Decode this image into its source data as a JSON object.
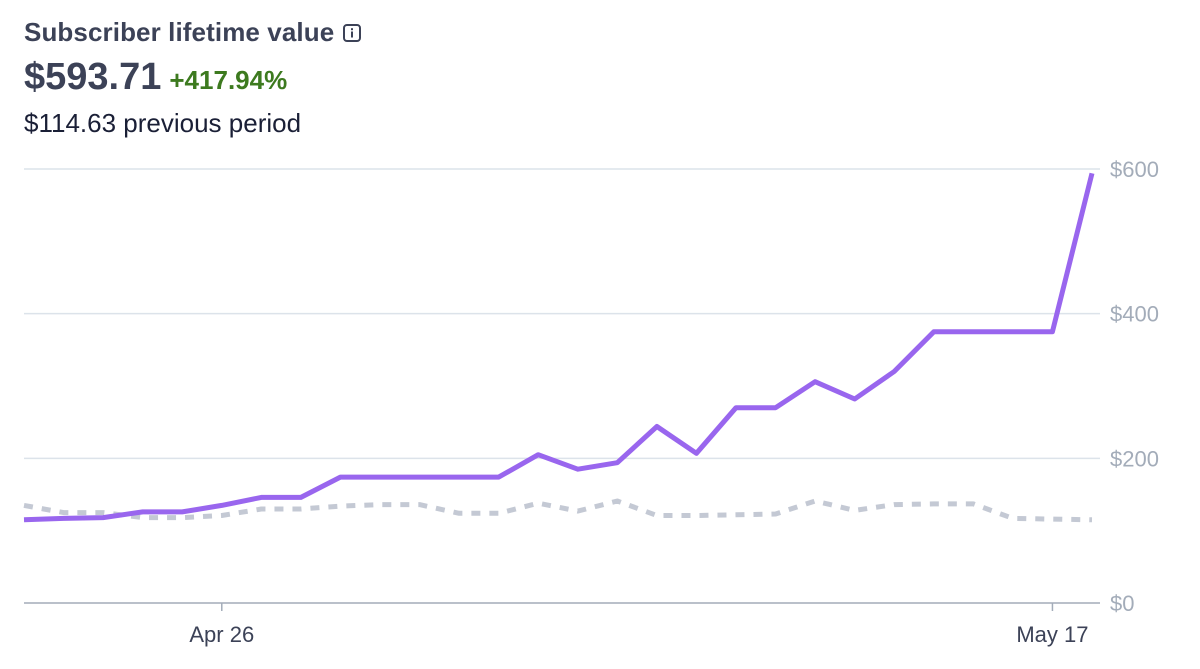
{
  "header": {
    "title": "Subscriber lifetime value",
    "value": "$593.71",
    "change": "+417.94%",
    "previous": "$114.63 previous period"
  },
  "colors": {
    "current": "#9966ee",
    "previous": "#c4c9d4",
    "grid": "#dce3ea",
    "axis": "#a3acb9",
    "positive": "#3d7a1f"
  },
  "chart_data": {
    "type": "line",
    "title": "Subscriber lifetime value",
    "x": [
      "Apr 21",
      "Apr 22",
      "Apr 23",
      "Apr 24",
      "Apr 25",
      "Apr 26",
      "Apr 27",
      "Apr 28",
      "Apr 29",
      "Apr 30",
      "May 1",
      "May 2",
      "May 3",
      "May 4",
      "May 5",
      "May 6",
      "May 7",
      "May 8",
      "May 9",
      "May 10",
      "May 11",
      "May 12",
      "May 13",
      "May 14",
      "May 15",
      "May 16",
      "May 17",
      "May 18"
    ],
    "x_tick_labels": [
      "Apr 26",
      "May 17"
    ],
    "y_tick_labels": [
      "$0",
      "$200",
      "$400",
      "$600"
    ],
    "ylim": [
      0,
      600
    ],
    "grid": true,
    "series": [
      {
        "values": [
          115,
          117,
          118,
          126,
          126,
          135,
          146,
          146,
          174,
          174,
          174,
          174,
          174,
          205,
          185,
          194,
          244,
          207,
          270,
          270,
          306,
          282,
          320,
          375,
          375,
          375,
          375,
          594
        ]
      },
      {
        "values": [
          135,
          125,
          125,
          118,
          118,
          121,
          130,
          130,
          134,
          136,
          136,
          124,
          124,
          138,
          127,
          141,
          121,
          121,
          122,
          123,
          141,
          128,
          136,
          137,
          137,
          117,
          116,
          115
        ]
      }
    ]
  }
}
